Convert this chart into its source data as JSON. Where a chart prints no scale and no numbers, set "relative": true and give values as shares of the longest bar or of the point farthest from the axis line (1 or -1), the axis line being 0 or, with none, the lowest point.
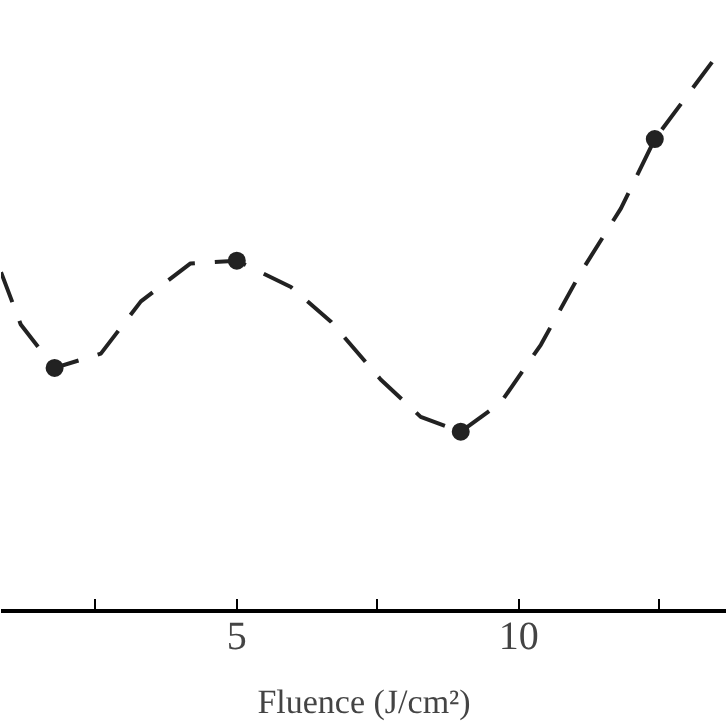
{
  "chart_data": {
    "type": "line",
    "xlabel": "Fluence (J/cm²)",
    "relative": true,
    "xlim": [
      0.82,
      13.69
    ],
    "xticks": [
      {
        "value": 2.5,
        "label": null
      },
      5,
      {
        "value": 7.5,
        "label": null
      },
      10,
      {
        "value": 12.5,
        "label": null
      }
    ],
    "tick_labels": "x",
    "grid": false,
    "series": [
      {
        "color": "#222222",
        "line_style": "dashed",
        "marker": "none",
        "x": [
          0.82,
          1.17,
          1.77,
          2.59,
          3.3,
          4.18,
          5.0,
          5.96,
          6.67,
          7.55,
          8.26,
          8.97,
          9.68,
          10.39,
          11.1,
          11.81,
          12.41,
          13.44
        ],
        "values": [
          0.616,
          0.521,
          0.442,
          0.468,
          0.563,
          0.632,
          0.637,
          0.589,
          0.526,
          0.421,
          0.353,
          0.326,
          0.379,
          0.484,
          0.616,
          0.732,
          0.858,
          1.0
        ]
      },
      {
        "type": "scatter",
        "color": "#222222",
        "marker": "circle",
        "x": [
          1.77,
          5.0,
          8.97,
          12.41
        ],
        "values": [
          0.442,
          0.637,
          0.326,
          0.858
        ]
      }
    ]
  }
}
